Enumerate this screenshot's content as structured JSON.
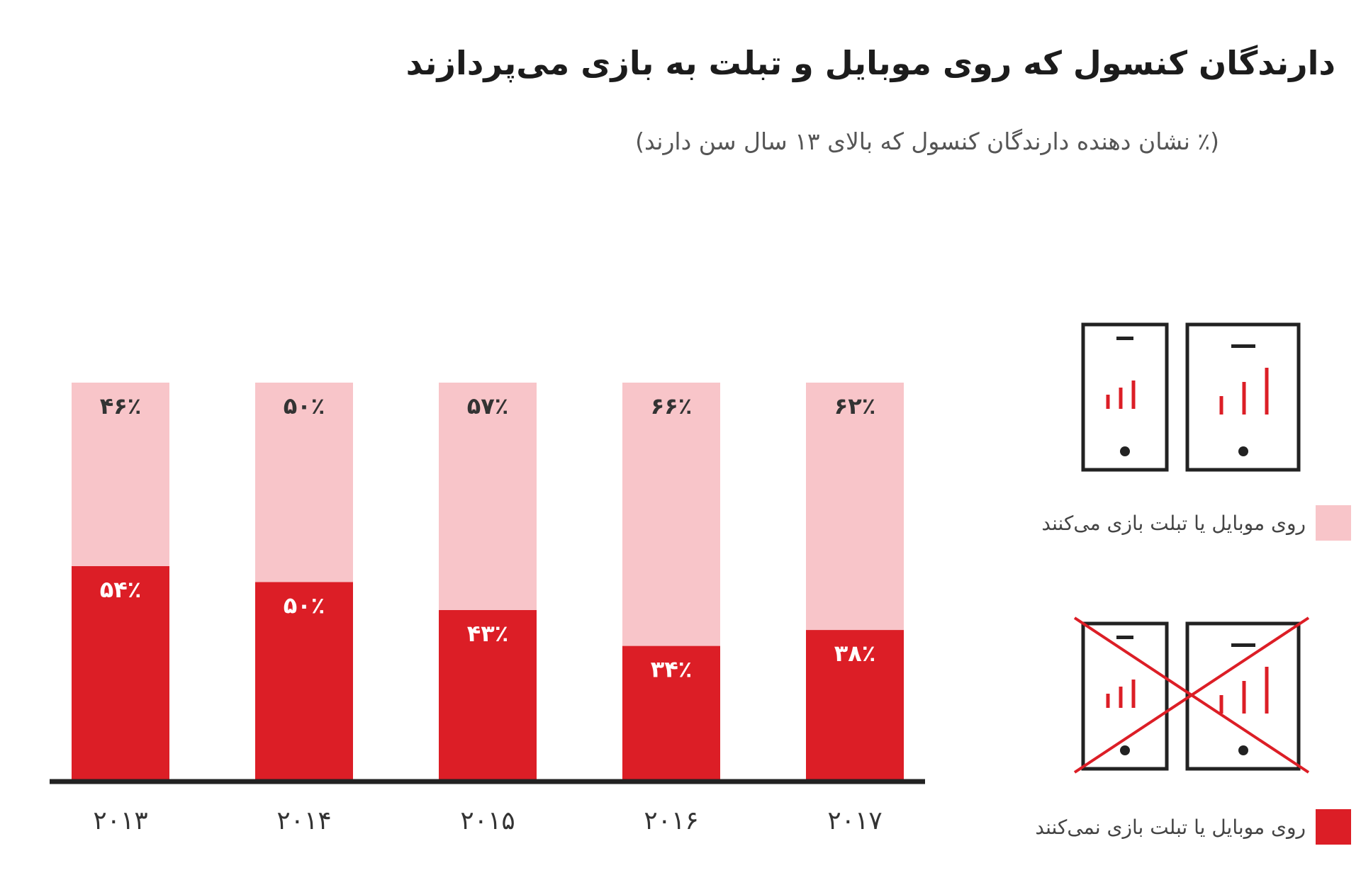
{
  "chart_data": {
    "type": "bar",
    "stacked": true,
    "title": "دارندگان کنسول که روی موبایل و تبلت به بازی می‌پردازند",
    "subtitle": "(٪ نشان دهنده دارندگان کنسول که بالای ۱۳ سال سن دارند)",
    "categories": [
      "۲۰۱۳",
      "۲۰۱۴",
      "۲۰۱۵",
      "۲۰۱۶",
      "۲۰۱۷"
    ],
    "ylim": [
      0,
      100
    ],
    "grid": false,
    "legend_position": "right",
    "series": [
      {
        "name": "روی موبایل یا تبلت بازی نمی‌کنند",
        "color": "#dc1e26",
        "text_color": "#ffffff",
        "values": [
          54,
          50,
          43,
          34,
          38
        ],
        "labels": [
          "۵۴٪",
          "۵۰٪",
          "۴۳٪",
          "۳۴٪",
          "۳۸٪"
        ]
      },
      {
        "name": "روی موبایل یا تبلت بازی می‌کنند",
        "color": "#f8c5c9",
        "text_color": "#333333",
        "values": [
          46,
          50,
          57,
          66,
          62
        ],
        "labels": [
          "۴۶٪",
          "۵۰٪",
          "۵۷٪",
          "۶۶٪",
          "۶۲٪"
        ]
      }
    ]
  },
  "legend": {
    "plays_label": "روی موبایل یا تبلت بازی می‌کنند",
    "plays_color": "#f8c5c9",
    "not_plays_label": "روی موبایل یا تبلت بازی نمی‌کنند",
    "not_plays_color": "#dc1e26",
    "plays_icon": "phone-tablet-icon",
    "not_plays_icon": "phone-tablet-crossed-icon"
  },
  "colors": {
    "icon_frame": "#222222",
    "accent": "#dc1e26",
    "axis": "#222222"
  }
}
